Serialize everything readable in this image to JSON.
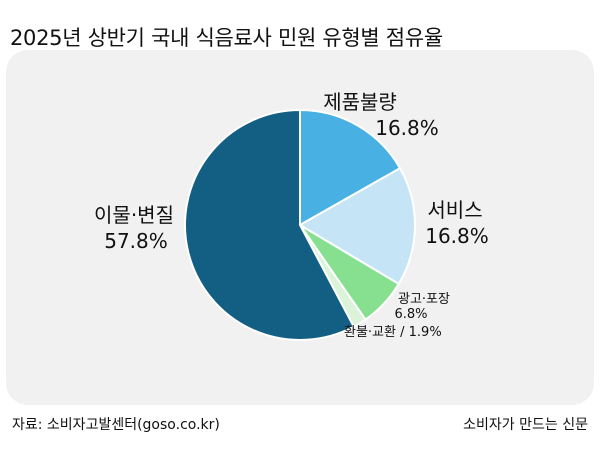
{
  "title": "2025년 상반기 국내 식음료사 민원 유형별 점유율",
  "footer": {
    "source": "자료: 소비자고발센터(goso.co.kr)",
    "brand": "소비자가 만드는 신문"
  },
  "chart_data": {
    "type": "pie",
    "title": "2025년 상반기 국내 식음료사 민원 유형별 점유율",
    "unit": "%",
    "slices": [
      {
        "name": "제품불량",
        "value": 16.8,
        "value_label": "16.8%",
        "color": "#48b0e2"
      },
      {
        "name": "서비스",
        "value": 16.8,
        "value_label": "16.8%",
        "color": "#c5e4f6"
      },
      {
        "name": "광고·포장",
        "value": 6.8,
        "value_label": "6.8%",
        "color": "#87e08f"
      },
      {
        "name": "환불·교환",
        "value": 1.9,
        "value_label": "1.9%",
        "color": "#dbf3d8"
      },
      {
        "name": "이물·변질",
        "value": 57.8,
        "value_label": "57.8%",
        "color": "#135f83"
      }
    ]
  }
}
